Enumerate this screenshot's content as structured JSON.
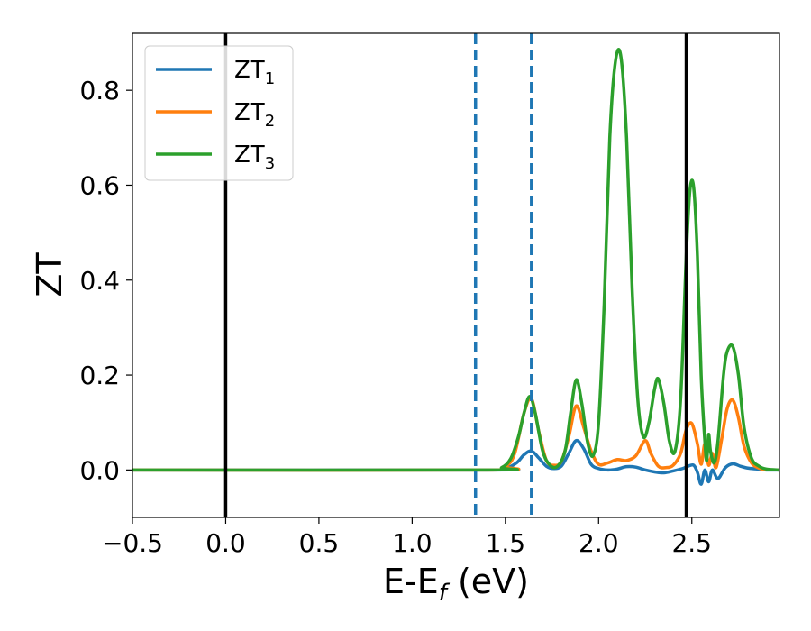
{
  "chart_data": {
    "type": "line",
    "title": "",
    "xlabel": "E-E",
    "xlabel_sub": "f",
    "xlabel_unit": " (eV)",
    "ylabel": "ZT",
    "xlim": [
      -0.5,
      2.97
    ],
    "ylim": [
      -0.1,
      0.92
    ],
    "xticks": [
      -0.5,
      0.0,
      0.5,
      1.0,
      1.5,
      2.0,
      2.5
    ],
    "xtick_labels": [
      "−0.5",
      "0.0",
      "0.5",
      "1.0",
      "1.5",
      "2.0",
      "2.5"
    ],
    "yticks": [
      0.0,
      0.2,
      0.4,
      0.6,
      0.8
    ],
    "ytick_labels": [
      "0.0",
      "0.2",
      "0.4",
      "0.6",
      "0.8"
    ],
    "grid": false,
    "legend_position": "upper-left",
    "vlines": [
      {
        "x": 0.0,
        "style": "solid",
        "color": "#000000"
      },
      {
        "x": 2.47,
        "style": "solid",
        "color": "#000000"
      },
      {
        "x": 1.34,
        "style": "dashed",
        "color": "#1f77b4"
      },
      {
        "x": 1.64,
        "style": "dashed",
        "color": "#1f77b4"
      }
    ],
    "series": [
      {
        "name": "ZT",
        "name_sub": "1",
        "color": "#1f77b4",
        "x": [
          -0.5,
          1.4,
          1.5,
          1.56,
          1.6,
          1.64,
          1.68,
          1.72,
          1.76,
          1.8,
          1.84,
          1.88,
          1.92,
          1.96,
          2.0,
          2.05,
          2.1,
          2.15,
          2.2,
          2.25,
          2.3,
          2.35,
          2.4,
          2.45,
          2.48,
          2.51,
          2.53,
          2.55,
          2.57,
          2.59,
          2.61,
          2.64,
          2.68,
          2.72,
          2.76,
          2.8,
          2.85,
          2.9,
          2.97
        ],
        "y": [
          0.0,
          0.0,
          0.003,
          0.015,
          0.032,
          0.04,
          0.025,
          0.008,
          0.003,
          0.008,
          0.035,
          0.062,
          0.045,
          0.012,
          0.003,
          0.0,
          0.002,
          0.007,
          0.006,
          0.0,
          -0.004,
          -0.006,
          -0.002,
          0.003,
          0.008,
          0.01,
          -0.005,
          -0.03,
          0.0,
          -0.025,
          0.0,
          -0.018,
          0.005,
          0.013,
          0.008,
          0.004,
          0.002,
          0.0,
          0.0
        ]
      },
      {
        "name": "ZT",
        "name_sub": "2",
        "color": "#ff7f0e",
        "x": [
          -0.5,
          1.4,
          1.5,
          1.55,
          1.6,
          1.64,
          1.68,
          1.72,
          1.76,
          1.8,
          1.84,
          1.88,
          1.92,
          1.96,
          2.0,
          2.05,
          2.1,
          2.15,
          2.2,
          2.25,
          2.28,
          2.32,
          2.36,
          2.4,
          2.44,
          2.47,
          2.5,
          2.53,
          2.55,
          2.57,
          2.59,
          2.61,
          2.63,
          2.66,
          2.69,
          2.72,
          2.75,
          2.78,
          2.82,
          2.86,
          2.9,
          2.97
        ],
        "y": [
          0.0,
          0.0,
          0.008,
          0.035,
          0.12,
          0.15,
          0.08,
          0.02,
          0.01,
          0.018,
          0.07,
          0.135,
          0.09,
          0.04,
          0.012,
          0.015,
          0.022,
          0.02,
          0.03,
          0.062,
          0.035,
          0.008,
          0.005,
          0.01,
          0.035,
          0.085,
          0.098,
          0.055,
          0.012,
          0.055,
          0.01,
          0.035,
          0.005,
          0.065,
          0.13,
          0.147,
          0.11,
          0.05,
          0.015,
          0.004,
          0.001,
          0.0
        ]
      },
      {
        "name": "ZT",
        "name_sub": "3",
        "color": "#2ca02c",
        "x": [
          -0.5,
          1.4,
          1.48,
          1.53,
          1.57,
          1.6,
          1.63,
          1.66,
          1.7,
          1.74,
          1.78,
          1.82,
          1.85,
          1.88,
          1.91,
          1.94,
          1.97,
          2.0,
          2.03,
          2.06,
          2.09,
          2.12,
          2.15,
          2.18,
          2.21,
          2.24,
          2.27,
          2.3,
          2.32,
          2.35,
          2.38,
          2.41,
          2.44,
          2.47,
          2.49,
          2.51,
          2.53,
          2.55,
          2.57,
          2.58,
          2.59,
          2.6,
          2.62,
          2.64,
          2.67,
          2.69,
          2.72,
          2.75,
          2.78,
          2.82,
          2.86,
          2.9,
          2.97
        ],
        "y": [
          0.0,
          0.0,
          0.005,
          0.025,
          0.07,
          0.12,
          0.155,
          0.12,
          0.04,
          0.01,
          0.008,
          0.04,
          0.12,
          0.19,
          0.14,
          0.06,
          0.03,
          0.1,
          0.35,
          0.7,
          0.86,
          0.87,
          0.7,
          0.38,
          0.15,
          0.07,
          0.1,
          0.17,
          0.192,
          0.14,
          0.06,
          0.04,
          0.15,
          0.45,
          0.59,
          0.595,
          0.45,
          0.2,
          0.06,
          0.02,
          0.075,
          0.04,
          0.015,
          0.06,
          0.2,
          0.25,
          0.26,
          0.2,
          0.09,
          0.025,
          0.008,
          0.002,
          0.0
        ]
      }
    ]
  }
}
